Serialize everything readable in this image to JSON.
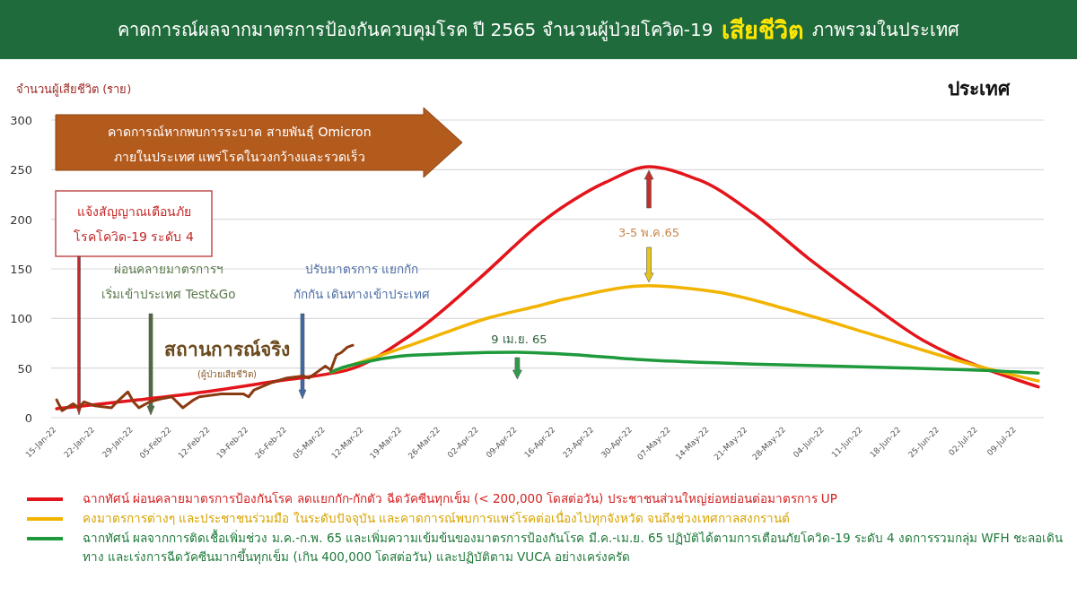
{
  "chart_data": {
    "type": "line",
    "title": "คาดการณ์ผลจากมาตรการป้องกันควบคุมโรค ปี 2565 จำนวนผู้ป่วยโควิด-19 **เสียชีวิต** ภาพรวมในประเทศ",
    "subtitle": "ประเทศ",
    "ylabel": "จำนวนผู้เสียชีวิต (ราย)",
    "xlim": [
      "--01-14",
      "--07-14"
    ],
    "ylim": [
      0,
      300
    ],
    "yticks": [
      0,
      50,
      100,
      150,
      200,
      250,
      300
    ],
    "xticks": [
      {
        "value": "--01-15",
        "label": "15-Jan-22"
      },
      {
        "value": "--01-22",
        "label": "22-Jan-22"
      },
      {
        "value": "--01-29",
        "label": "29-Jan-22"
      },
      {
        "value": "--02-05",
        "label": "05-Feb-22"
      },
      {
        "value": "--02-12",
        "label": "12-Feb-22"
      },
      {
        "value": "--02-19",
        "label": "19-Feb-22"
      },
      {
        "value": "--02-26",
        "label": "26-Feb-22"
      },
      {
        "value": "--03-05",
        "label": "05-Mar-22"
      },
      {
        "value": "--03-12",
        "label": "12-Mar-22"
      },
      {
        "value": "--03-19",
        "label": "19-Mar-22"
      },
      {
        "value": "--03-26",
        "label": "26-Mar-22"
      },
      {
        "value": "--04-02",
        "label": "02-Apr-22"
      },
      {
        "value": "--04-09",
        "label": "09-Apr-22"
      },
      {
        "value": "--04-16",
        "label": "16-Apr-22"
      },
      {
        "value": "--04-23",
        "label": "23-Apr-22"
      },
      {
        "value": "--04-30",
        "label": "30-Apr-22"
      },
      {
        "value": "--05-07",
        "label": "07-May-22"
      },
      {
        "value": "--05-14",
        "label": "14-May-22"
      },
      {
        "value": "--05-21",
        "label": "21-May-22"
      },
      {
        "value": "--05-28",
        "label": "28-May-22"
      },
      {
        "value": "--06-04",
        "label": "04-Jun-22"
      },
      {
        "value": "--06-11",
        "label": "11-Jun-22"
      },
      {
        "value": "--06-18",
        "label": "18-Jun-22"
      },
      {
        "value": "--06-25",
        "label": "25-Jun-22"
      },
      {
        "value": "--07-02",
        "label": "02-Jul-22"
      },
      {
        "value": "--07-09",
        "label": "09-Jul-22"
      }
    ],
    "grid": "y",
    "legend": "bottom",
    "series": [
      {
        "name": "ฉากทัศน์ ผ่อนคลายมาตรการป้องกันโรค ลดแยกกัก-กักตัว ฉีดวัคซีนทุกเข็ม (< 200,000 โดสต่อวัน) ประชาชนส่วนใหญ่ย่อหย่อนต่อมาตรการ UP",
        "color": "#e3151b",
        "x": [
          "--01-15",
          "--01-30",
          "--02-11",
          "--02-23",
          "--03-09",
          "--03-21",
          "--04-02",
          "--04-13",
          "--04-18",
          "--04-25",
          "--05-03",
          "--05-12",
          "--05-22",
          "--06-01",
          "--06-12",
          "--06-22",
          "--07-02",
          "--07-13"
        ],
        "values": [
          9,
          18,
          26,
          36,
          48,
          85,
          140,
          195,
          215,
          237,
          253,
          240,
          206,
          161,
          116,
          78,
          52,
          31
        ]
      },
      {
        "name": "คงมาตรการต่างๆ และประชาชนร่วมมือ ในระดับปัจจุบัน และคาดการณ์พบการแพร่โรคต่อเนื่องไปทุกจังหวัด จนถึงช่วงเทศกาลสงกรานต์",
        "color": "#f2b400",
        "x": [
          "--03-06",
          "--03-21",
          "--04-04",
          "--04-13",
          "--04-18",
          "--05-03",
          "--05-15",
          "--05-29",
          "--06-12",
          "--06-25",
          "--07-02",
          "--07-13"
        ],
        "values": [
          46,
          74,
          101,
          113,
          120,
          133,
          127,
          108,
          85,
          63,
          52,
          37
        ]
      },
      {
        "name": "ฉากทัศน์ ผลจากการติดเชื้อเพิ่มช่วง ม.ค.-ก.พ. 65 และเพิ่มความเข้มข้นของมาตรการป้องกันโรค มี.ค.-เม.ย. 65 ปฏิบัติได้ตามการเตือนภัยโควิด-19 ระดับ 4 งดการรวมกลุ่ม WFH ชะลอเดินทาง และเร่งการฉีดวัคซีนมากขึ้นทุกเข็ม (เกิน 400,000 โดสต่อวัน) และปฏิบัติตาม VUCA อย่างเคร่งครัด",
        "color": "#1e9a3c",
        "x": [
          "--03-06",
          "--03-09",
          "--03-21",
          "--04-09",
          "--04-18",
          "--05-03",
          "--05-22",
          "--06-12",
          "--07-02",
          "--07-13"
        ],
        "values": [
          46,
          52,
          63,
          66,
          64,
          58,
          54,
          51,
          48,
          45
        ]
      },
      {
        "name": "สถานการณ์จริง",
        "color": "#8a3b12",
        "x": [
          "--01-15",
          "--01-16",
          "--01-18",
          "--01-19",
          "--01-20",
          "--01-22",
          "--01-25",
          "--01-26",
          "--01-28",
          "--01-29",
          "--01-30",
          "--02-01",
          "--02-03",
          "--02-05",
          "--02-07",
          "--02-09",
          "--02-10",
          "--02-14",
          "--02-18",
          "--02-19",
          "--02-20",
          "--02-23",
          "--02-26",
          "--03-01",
          "--03-02",
          "--03-04",
          "--03-05",
          "--03-06",
          "--03-07",
          "--03-08",
          "--03-09",
          "--03-10"
        ],
        "values": [
          18,
          7,
          14,
          10,
          16,
          12,
          10,
          16,
          26,
          16,
          10,
          16,
          19,
          21,
          10,
          18,
          21,
          24,
          24,
          21,
          28,
          35,
          40,
          42,
          40,
          48,
          52,
          48,
          63,
          66,
          71,
          73
        ]
      }
    ],
    "annotations": [
      "คาดการณ์หากพบการระบาด สายพันธุ์ Omicron\nภายในประเทศ แพร่โรคในวงกว้างและรวดเร็ว",
      "แจ้งสัญญาณเตือนภัย\nโรคโควิด-19 ระดับ 4",
      "ผ่อนคลายมาตรการฯ\nเริ่มเข้าประเทศ Test&Go",
      "ปรับมาตรการ แยกกัก\nกักกัน เดินทางเข้าประเทศ",
      "(ผู้ป่วยเสียชีวิต)",
      {
        "text": "9 เม.ย. 65",
        "x": "--04-09",
        "y": 66
      },
      "3-5 พ.ค.65"
    ]
  }
}
